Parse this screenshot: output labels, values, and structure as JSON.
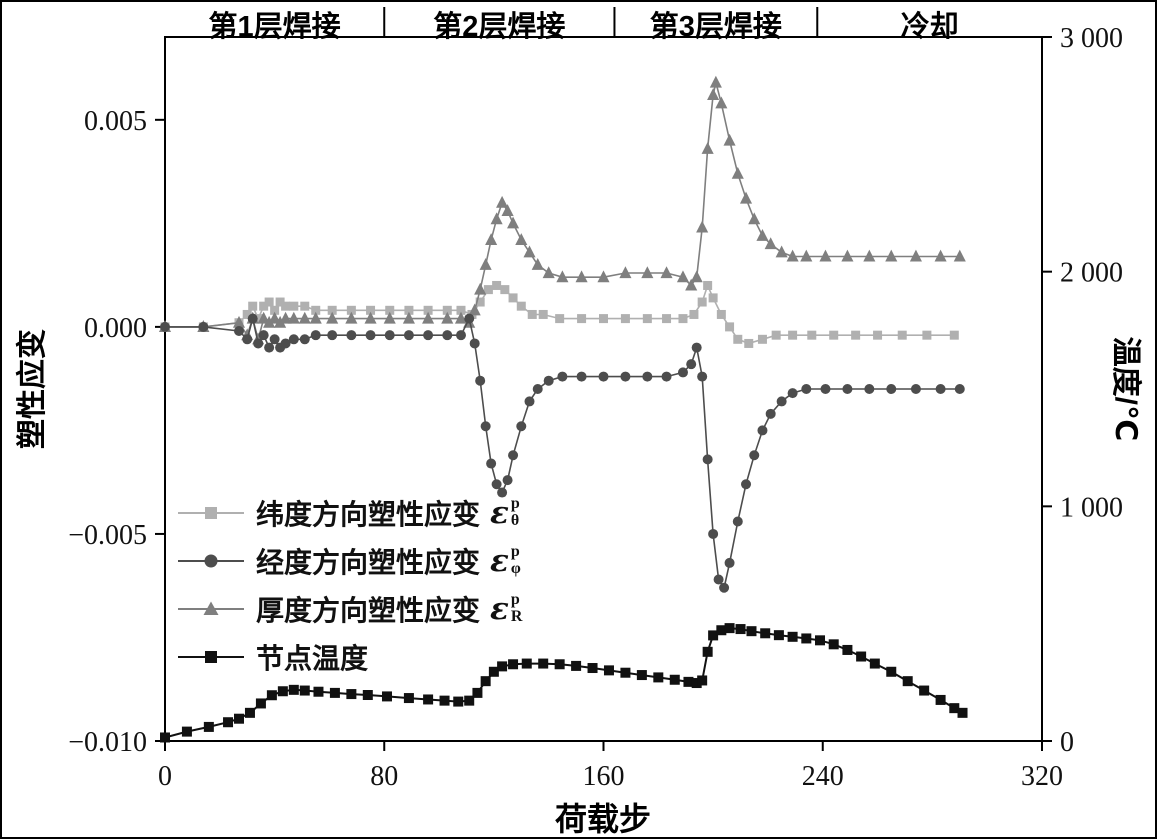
{
  "figure": {
    "background": "#ffffff",
    "frame_color": "#000000"
  },
  "chart_data": {
    "type": "line",
    "title": "",
    "xlabel": "荷载步",
    "ylabel_left": "塑性应变",
    "ylabel_right": "温度/℃",
    "xlim": [
      0,
      320
    ],
    "ylim_left": [
      -0.01,
      0.007
    ],
    "ylim_right": [
      0,
      3000
    ],
    "grid": "off",
    "legend_position": "inside-left-middle",
    "frame_color": "#000000",
    "x_ticks": [
      {
        "v": 0,
        "label": "0"
      },
      {
        "v": 80,
        "label": "80"
      },
      {
        "v": 160,
        "label": "160"
      },
      {
        "v": 240,
        "label": "240"
      },
      {
        "v": 320,
        "label": "320"
      }
    ],
    "y_ticks_left": [
      {
        "v": 0.005,
        "label": "0.005"
      },
      {
        "v": 0.0,
        "label": "0.000"
      },
      {
        "v": -0.005,
        "label": "−0.005"
      },
      {
        "v": -0.01,
        "label": "−0.010"
      }
    ],
    "y_ticks_right": [
      {
        "v": 3000,
        "label": "3 000"
      },
      {
        "v": 2000,
        "label": "2 000"
      },
      {
        "v": 1000,
        "label": "1 000"
      },
      {
        "v": 0,
        "label": "0"
      }
    ],
    "bands": [
      {
        "label": "第1层焊接",
        "from": 0,
        "to": 80
      },
      {
        "label": "第2层焊接",
        "from": 80,
        "to": 164
      },
      {
        "label": "第3层焊接",
        "from": 164,
        "to": 238
      },
      {
        "label": "冷却",
        "from": 238,
        "to": 320
      }
    ],
    "series": [
      {
        "id": "latitude-strain",
        "name": "纬度方向塑性应变 εθp",
        "axis": "left",
        "marker": "square",
        "marker_size": 9,
        "line_width": 1.6,
        "color": "#b0b0b0",
        "points": [
          [
            0,
            0
          ],
          [
            14,
            0
          ],
          [
            27,
            0.0001
          ],
          [
            30,
            0.0003
          ],
          [
            32,
            0.0005
          ],
          [
            34,
            0.0002
          ],
          [
            36,
            0.0005
          ],
          [
            38,
            0.0006
          ],
          [
            40,
            0.0004
          ],
          [
            42,
            0.0006
          ],
          [
            44,
            0.0005
          ],
          [
            47,
            0.0005
          ],
          [
            51,
            0.0005
          ],
          [
            55,
            0.0004
          ],
          [
            61,
            0.0004
          ],
          [
            68,
            0.0004
          ],
          [
            75,
            0.0004
          ],
          [
            82,
            0.0004
          ],
          [
            89,
            0.0004
          ],
          [
            96,
            0.0004
          ],
          [
            103,
            0.0004
          ],
          [
            108,
            0.0004
          ],
          [
            112,
            0.0003
          ],
          [
            115,
            0.0006
          ],
          [
            118,
            0.0009
          ],
          [
            121,
            0.001
          ],
          [
            124,
            0.0009
          ],
          [
            127,
            0.0007
          ],
          [
            130,
            0.0005
          ],
          [
            134,
            0.0003
          ],
          [
            138,
            0.0003
          ],
          [
            144,
            0.0002
          ],
          [
            152,
            0.0002
          ],
          [
            160,
            0.0002
          ],
          [
            168,
            0.0002
          ],
          [
            176,
            0.0002
          ],
          [
            183,
            0.0002
          ],
          [
            189,
            0.0002
          ],
          [
            193,
            0.0003
          ],
          [
            196,
            0.0006
          ],
          [
            198,
            0.001
          ],
          [
            200,
            0.0007
          ],
          [
            203,
            0.0003
          ],
          [
            206,
            0
          ],
          [
            209,
            -0.0003
          ],
          [
            213,
            -0.0004
          ],
          [
            218,
            -0.0003
          ],
          [
            223,
            -0.0002
          ],
          [
            229,
            -0.0002
          ],
          [
            236,
            -0.0002
          ],
          [
            244,
            -0.0002
          ],
          [
            252,
            -0.0002
          ],
          [
            260,
            -0.0002
          ],
          [
            269,
            -0.0002
          ],
          [
            278,
            -0.0002
          ],
          [
            288,
            -0.0002
          ]
        ]
      },
      {
        "id": "thickness-strain",
        "name": "厚度方向塑性应变 εRp",
        "axis": "left",
        "marker": "triangle",
        "marker_size": 11,
        "line_width": 1.6,
        "color": "#7f7f7f",
        "points": [
          [
            0,
            0
          ],
          [
            14,
            0
          ],
          [
            27,
            0.0001
          ],
          [
            30,
            -0.0002
          ],
          [
            32,
            0.0002
          ],
          [
            34,
            -0.0003
          ],
          [
            36,
            0.0002
          ],
          [
            38,
            0.0001
          ],
          [
            40,
            0.0002
          ],
          [
            42,
            0.0001
          ],
          [
            44,
            0.0002
          ],
          [
            47,
            0.0002
          ],
          [
            51,
            0.0002
          ],
          [
            55,
            0.0002
          ],
          [
            61,
            0.0002
          ],
          [
            68,
            0.0002
          ],
          [
            75,
            0.0002
          ],
          [
            82,
            0.0002
          ],
          [
            89,
            0.0002
          ],
          [
            96,
            0.0002
          ],
          [
            103,
            0.0002
          ],
          [
            108,
            0.0002
          ],
          [
            111,
            0.0001
          ],
          [
            113,
            0.0004
          ],
          [
            115,
            0.0009
          ],
          [
            117,
            0.0015
          ],
          [
            119,
            0.0021
          ],
          [
            121,
            0.0026
          ],
          [
            123,
            0.003
          ],
          [
            125,
            0.0028
          ],
          [
            127,
            0.0025
          ],
          [
            130,
            0.0021
          ],
          [
            133,
            0.0018
          ],
          [
            136,
            0.0015
          ],
          [
            140,
            0.0013
          ],
          [
            145,
            0.0012
          ],
          [
            152,
            0.0012
          ],
          [
            160,
            0.0012
          ],
          [
            168,
            0.0013
          ],
          [
            176,
            0.0013
          ],
          [
            183,
            0.0013
          ],
          [
            189,
            0.0012
          ],
          [
            192,
            0.001
          ],
          [
            194,
            0.0012
          ],
          [
            196,
            0.0024
          ],
          [
            198,
            0.0043
          ],
          [
            200,
            0.0056
          ],
          [
            201,
            0.0059
          ],
          [
            203,
            0.0054
          ],
          [
            206,
            0.0045
          ],
          [
            209,
            0.0037
          ],
          [
            212,
            0.0031
          ],
          [
            215,
            0.0026
          ],
          [
            218,
            0.0022
          ],
          [
            221,
            0.002
          ],
          [
            225,
            0.0018
          ],
          [
            229,
            0.0017
          ],
          [
            234,
            0.0017
          ],
          [
            241,
            0.0017
          ],
          [
            249,
            0.0017
          ],
          [
            257,
            0.0017
          ],
          [
            265,
            0.0017
          ],
          [
            274,
            0.0017
          ],
          [
            283,
            0.0017
          ],
          [
            290,
            0.0017
          ]
        ]
      },
      {
        "id": "longitude-strain",
        "name": "经度方向塑性应变 εφp",
        "axis": "left",
        "marker": "circle",
        "marker_size": 10,
        "line_width": 1.6,
        "color": "#4d4d4d",
        "points": [
          [
            0,
            0
          ],
          [
            14,
            0
          ],
          [
            27,
            -0.0001
          ],
          [
            30,
            -0.0003
          ],
          [
            32,
            0.0002
          ],
          [
            34,
            -0.0004
          ],
          [
            36,
            -0.0002
          ],
          [
            38,
            -0.0005
          ],
          [
            40,
            -0.0003
          ],
          [
            42,
            -0.0005
          ],
          [
            44,
            -0.0004
          ],
          [
            47,
            -0.0003
          ],
          [
            51,
            -0.0003
          ],
          [
            55,
            -0.0002
          ],
          [
            61,
            -0.0002
          ],
          [
            68,
            -0.0002
          ],
          [
            75,
            -0.0002
          ],
          [
            82,
            -0.0002
          ],
          [
            89,
            -0.0002
          ],
          [
            96,
            -0.0002
          ],
          [
            103,
            -0.0002
          ],
          [
            108,
            -0.0002
          ],
          [
            111,
            0.0002
          ],
          [
            113,
            -0.0004
          ],
          [
            115,
            -0.0013
          ],
          [
            117,
            -0.0024
          ],
          [
            119,
            -0.0033
          ],
          [
            121,
            -0.0038
          ],
          [
            123,
            -0.004
          ],
          [
            125,
            -0.0037
          ],
          [
            127,
            -0.0031
          ],
          [
            130,
            -0.0024
          ],
          [
            133,
            -0.0018
          ],
          [
            136,
            -0.0015
          ],
          [
            140,
            -0.0013
          ],
          [
            145,
            -0.0012
          ],
          [
            152,
            -0.0012
          ],
          [
            160,
            -0.0012
          ],
          [
            168,
            -0.0012
          ],
          [
            176,
            -0.0012
          ],
          [
            183,
            -0.0012
          ],
          [
            189,
            -0.0011
          ],
          [
            192,
            -0.0009
          ],
          [
            194,
            -0.0005
          ],
          [
            196,
            -0.0012
          ],
          [
            198,
            -0.0032
          ],
          [
            200,
            -0.005
          ],
          [
            202,
            -0.0061
          ],
          [
            204,
            -0.0063
          ],
          [
            206,
            -0.0057
          ],
          [
            209,
            -0.0047
          ],
          [
            212,
            -0.0038
          ],
          [
            215,
            -0.0031
          ],
          [
            218,
            -0.0025
          ],
          [
            221,
            -0.0021
          ],
          [
            225,
            -0.0018
          ],
          [
            229,
            -0.0016
          ],
          [
            234,
            -0.0015
          ],
          [
            241,
            -0.0015
          ],
          [
            249,
            -0.0015
          ],
          [
            257,
            -0.0015
          ],
          [
            265,
            -0.0015
          ],
          [
            274,
            -0.0015
          ],
          [
            283,
            -0.0015
          ],
          [
            290,
            -0.0015
          ]
        ]
      },
      {
        "id": "node-temperature",
        "name": "节点温度",
        "axis": "right",
        "marker": "square",
        "marker_size": 10,
        "line_width": 2,
        "color": "#111111",
        "points": [
          [
            0,
            15
          ],
          [
            8,
            40
          ],
          [
            16,
            60
          ],
          [
            23,
            80
          ],
          [
            27,
            95
          ],
          [
            31,
            120
          ],
          [
            35,
            160
          ],
          [
            39,
            195
          ],
          [
            43,
            212
          ],
          [
            47,
            218
          ],
          [
            51,
            215
          ],
          [
            56,
            210
          ],
          [
            62,
            205
          ],
          [
            68,
            200
          ],
          [
            74,
            196
          ],
          [
            81,
            190
          ],
          [
            89,
            183
          ],
          [
            96,
            177
          ],
          [
            102,
            172
          ],
          [
            107,
            168
          ],
          [
            111,
            172
          ],
          [
            114,
            205
          ],
          [
            117,
            255
          ],
          [
            120,
            295
          ],
          [
            123,
            318
          ],
          [
            127,
            327
          ],
          [
            132,
            330
          ],
          [
            138,
            330
          ],
          [
            144,
            327
          ],
          [
            150,
            320
          ],
          [
            156,
            311
          ],
          [
            162,
            301
          ],
          [
            168,
            291
          ],
          [
            174,
            281
          ],
          [
            180,
            271
          ],
          [
            186,
            261
          ],
          [
            191,
            252
          ],
          [
            194,
            247
          ],
          [
            196,
            258
          ],
          [
            198,
            380
          ],
          [
            200,
            450
          ],
          [
            203,
            472
          ],
          [
            206,
            481
          ],
          [
            210,
            477
          ],
          [
            214,
            468
          ],
          [
            219,
            459
          ],
          [
            224,
            451
          ],
          [
            229,
            444
          ],
          [
            234,
            437
          ],
          [
            239,
            429
          ],
          [
            244,
            412
          ],
          [
            249,
            388
          ],
          [
            254,
            360
          ],
          [
            259,
            330
          ],
          [
            265,
            295
          ],
          [
            271,
            255
          ],
          [
            277,
            215
          ],
          [
            283,
            175
          ],
          [
            288,
            140
          ],
          [
            291,
            120
          ]
        ]
      }
    ]
  },
  "legend": {
    "items": [
      {
        "text": "纬度方向塑性应变",
        "sym": "ε",
        "sup": "p",
        "sub": "θ"
      },
      {
        "text": "经度方向塑性应变",
        "sym": "ε",
        "sup": "p",
        "sub": "φ"
      },
      {
        "text": "厚度方向塑性应变",
        "sym": "ε",
        "sup": "p",
        "sub": "R"
      },
      {
        "text": "节点温度",
        "sym": "",
        "sup": "",
        "sub": ""
      }
    ]
  }
}
